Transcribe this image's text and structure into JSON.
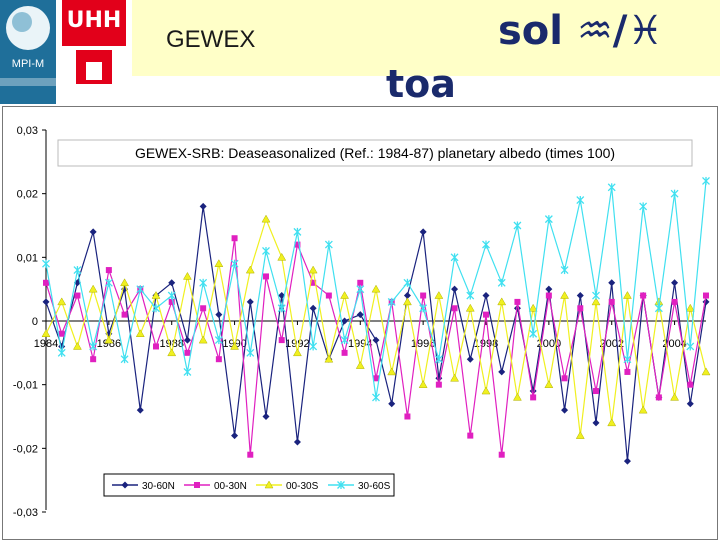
{
  "header": {
    "left_logo_text": "MPI-M",
    "uhh_logo_text": "UHH",
    "title": "GEWEX",
    "right_title": "sol",
    "right_symbols": "♒/♓",
    "subtitle": "toa"
  },
  "chart_data": {
    "type": "line",
    "title": "GEWEX-SRB: Deaseasonalized (Ref.: 1984-87) planetary albedo (times 100)",
    "xlabel": "",
    "ylabel": "",
    "x_range": [
      1984,
      2005
    ],
    "ylim": [
      -0.03,
      0.03
    ],
    "y_ticks": [
      0.03,
      0.02,
      0.01,
      0,
      -0.01,
      -0.02,
      -0.03
    ],
    "y_tick_labels": [
      "0,03",
      "0,02",
      "0,01",
      "0",
      "-0,01",
      "-0,02",
      "-0,03"
    ],
    "x_ticks": [
      1984,
      1986,
      1988,
      1990,
      1992,
      1994,
      1996,
      1998,
      2000,
      2002,
      2004
    ],
    "x_tick_labels": [
      "1984",
      "1986",
      "1988",
      "1990",
      "1992",
      "1994",
      "1996",
      "1998",
      "2000",
      "2002",
      "2004"
    ],
    "legend_position": "bottom",
    "grid": false,
    "series": [
      {
        "name": "30-60N",
        "color": "#1a237e",
        "marker": "diamond",
        "x": [
          1984.0,
          1984.5,
          1985.0,
          1985.5,
          1986.0,
          1986.5,
          1987.0,
          1987.5,
          1988.0,
          1988.5,
          1989.0,
          1989.5,
          1990.0,
          1990.5,
          1991.0,
          1991.5,
          1992.0,
          1992.5,
          1993.0,
          1993.5,
          1994.0,
          1994.5,
          1995.0,
          1995.5,
          1996.0,
          1996.5,
          1997.0,
          1997.5,
          1998.0,
          1998.5,
          1999.0,
          1999.5,
          2000.0,
          2000.5,
          2001.0,
          2001.5,
          2002.0,
          2002.5,
          2003.0,
          2003.5,
          2004.0,
          2004.5,
          2005.0
        ],
        "values": [
          0.003,
          -0.004,
          0.006,
          0.014,
          -0.002,
          0.005,
          -0.014,
          0.004,
          0.006,
          -0.003,
          0.018,
          0.001,
          -0.018,
          0.003,
          -0.015,
          0.004,
          -0.019,
          0.002,
          -0.006,
          0.0,
          0.001,
          -0.003,
          -0.013,
          0.004,
          0.014,
          -0.009,
          0.005,
          -0.006,
          0.004,
          -0.008,
          0.002,
          -0.011,
          0.005,
          -0.014,
          0.004,
          -0.016,
          0.006,
          -0.022,
          0.004,
          -0.012,
          0.006,
          -0.013,
          0.003
        ]
      },
      {
        "name": "00-30N",
        "color": "#e020c0",
        "marker": "square",
        "x": [
          1984.0,
          1984.5,
          1985.0,
          1985.5,
          1986.0,
          1986.5,
          1987.0,
          1987.5,
          1988.0,
          1988.5,
          1989.0,
          1989.5,
          1990.0,
          1990.5,
          1991.0,
          1991.5,
          1992.0,
          1992.5,
          1993.0,
          1993.5,
          1994.0,
          1994.5,
          1995.0,
          1995.5,
          1996.0,
          1996.5,
          1997.0,
          1997.5,
          1998.0,
          1998.5,
          1999.0,
          1999.5,
          2000.0,
          2000.5,
          2001.0,
          2001.5,
          2002.0,
          2002.5,
          2003.0,
          2003.5,
          2004.0,
          2004.5,
          2005.0
        ],
        "values": [
          0.006,
          -0.002,
          0.004,
          -0.006,
          0.008,
          0.001,
          0.005,
          -0.004,
          0.003,
          -0.005,
          0.002,
          -0.006,
          0.013,
          -0.021,
          0.007,
          -0.003,
          0.012,
          0.006,
          0.004,
          -0.005,
          0.006,
          -0.009,
          0.003,
          -0.015,
          0.004,
          -0.01,
          0.002,
          -0.018,
          0.001,
          -0.021,
          0.003,
          -0.012,
          0.004,
          -0.009,
          0.002,
          -0.011,
          0.003,
          -0.008,
          0.004,
          -0.012,
          0.003,
          -0.01,
          0.004
        ]
      },
      {
        "name": "00-30S",
        "color": "#f0f020",
        "marker": "triangle",
        "x": [
          1984.0,
          1984.5,
          1985.0,
          1985.5,
          1986.0,
          1986.5,
          1987.0,
          1987.5,
          1988.0,
          1988.5,
          1989.0,
          1989.5,
          1990.0,
          1990.5,
          1991.0,
          1991.5,
          1992.0,
          1992.5,
          1993.0,
          1993.5,
          1994.0,
          1994.5,
          1995.0,
          1995.5,
          1996.0,
          1996.5,
          1997.0,
          1997.5,
          1998.0,
          1998.5,
          1999.0,
          1999.5,
          2000.0,
          2000.5,
          2001.0,
          2001.5,
          2002.0,
          2002.5,
          2003.0,
          2003.5,
          2004.0,
          2004.5,
          2005.0
        ],
        "values": [
          -0.002,
          0.003,
          -0.004,
          0.005,
          -0.003,
          0.006,
          -0.002,
          0.004,
          -0.005,
          0.007,
          -0.003,
          0.009,
          -0.004,
          0.008,
          0.016,
          0.01,
          -0.005,
          0.008,
          -0.006,
          0.004,
          -0.007,
          0.005,
          -0.008,
          0.003,
          -0.01,
          0.004,
          -0.009,
          0.002,
          -0.011,
          0.003,
          -0.012,
          0.002,
          -0.01,
          0.004,
          -0.018,
          0.003,
          -0.016,
          0.004,
          -0.014,
          0.003,
          -0.012,
          0.002,
          -0.008
        ]
      },
      {
        "name": "30-60S",
        "color": "#40e0f0",
        "marker": "star",
        "x": [
          1984.0,
          1984.5,
          1985.0,
          1985.5,
          1986.0,
          1986.5,
          1987.0,
          1987.5,
          1988.0,
          1988.5,
          1989.0,
          1989.5,
          1990.0,
          1990.5,
          1991.0,
          1991.5,
          1992.0,
          1992.5,
          1993.0,
          1993.5,
          1994.0,
          1994.5,
          1995.0,
          1995.5,
          1996.0,
          1996.5,
          1997.0,
          1997.5,
          1998.0,
          1998.5,
          1999.0,
          1999.5,
          2000.0,
          2000.5,
          2001.0,
          2001.5,
          2002.0,
          2002.5,
          2003.0,
          2003.5,
          2004.0,
          2004.5,
          2005.0
        ],
        "values": [
          0.009,
          -0.005,
          0.008,
          -0.004,
          0.006,
          -0.006,
          0.005,
          0.002,
          0.004,
          -0.008,
          0.006,
          -0.003,
          0.009,
          -0.005,
          0.011,
          0.002,
          0.014,
          -0.004,
          0.012,
          -0.003,
          0.005,
          -0.012,
          0.003,
          0.006,
          0.002,
          -0.006,
          0.01,
          0.004,
          0.012,
          0.006,
          0.015,
          -0.002,
          0.016,
          0.008,
          0.019,
          0.004,
          0.021,
          -0.006,
          0.018,
          0.002,
          0.02,
          -0.004,
          0.022
        ]
      }
    ]
  }
}
